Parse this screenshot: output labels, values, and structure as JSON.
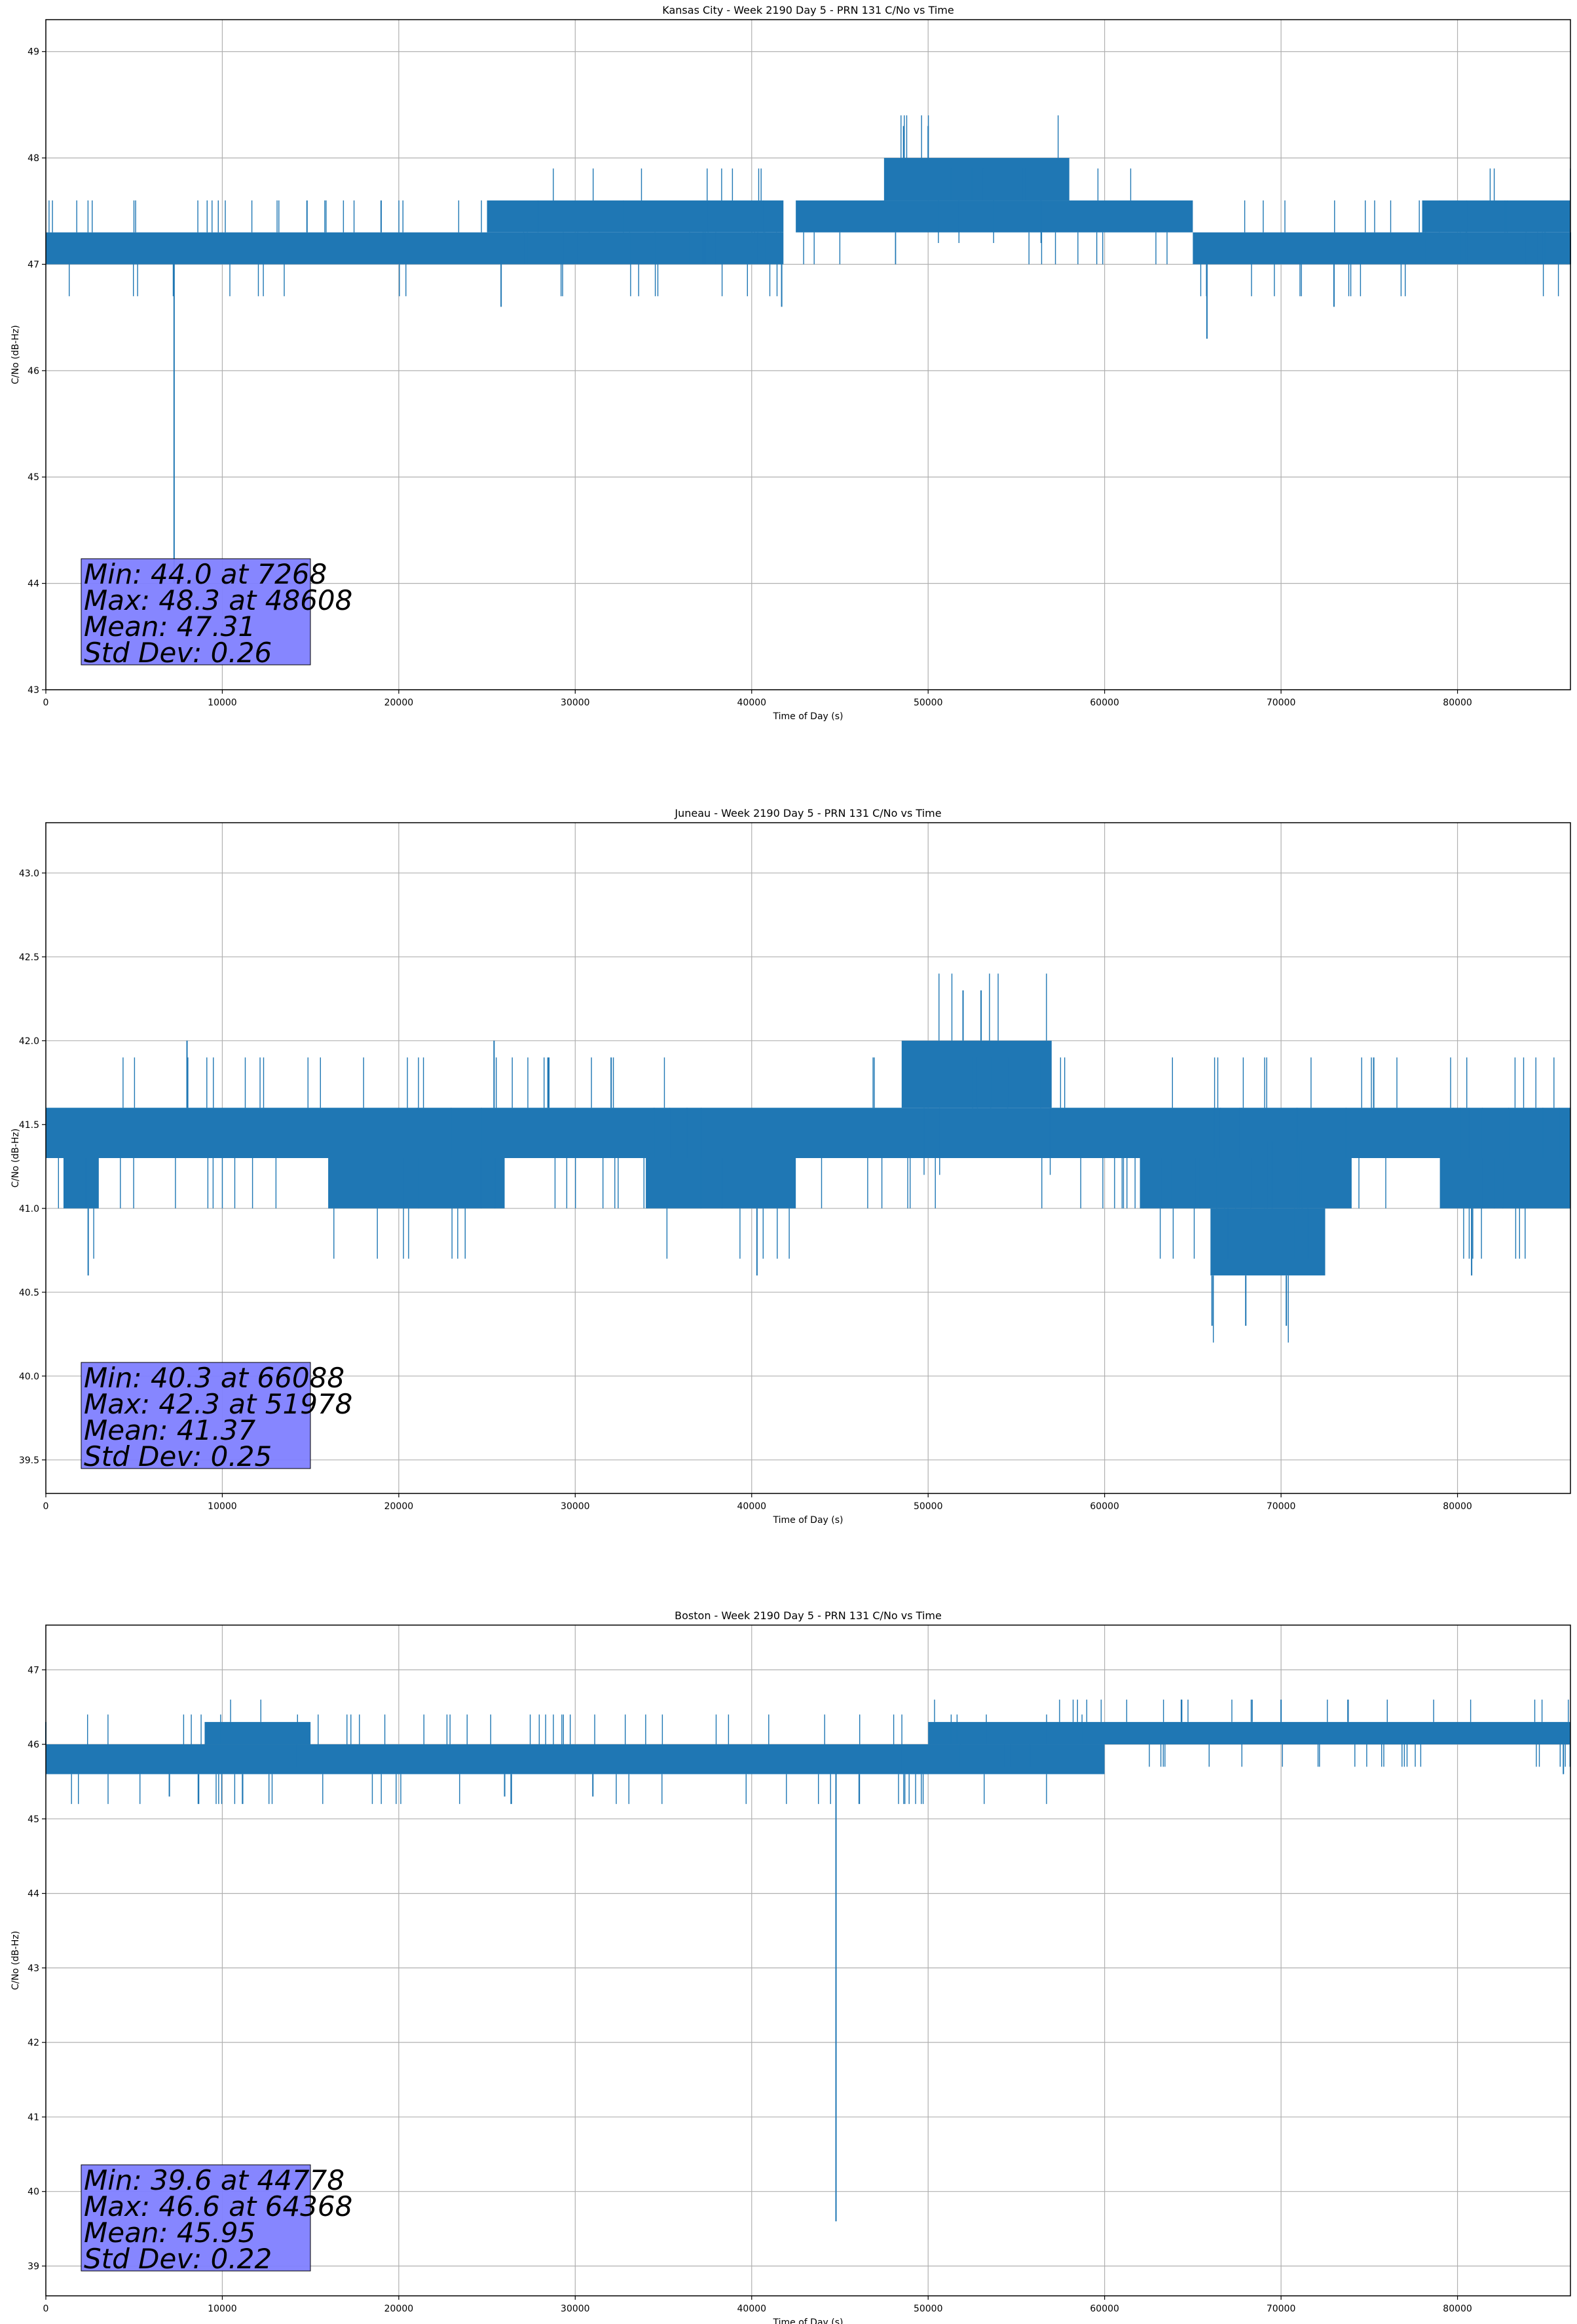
{
  "chart_data": [
    {
      "type": "line",
      "title": "Kansas City - Week 2190 Day 5 - PRN 131 C/No vs Time",
      "xlabel": "Time of Day (s)",
      "ylabel": "C/No (dB-Hz)",
      "xlim": [
        0,
        86400
      ],
      "ylim": [
        43.0,
        49.3
      ],
      "xticks": [
        0,
        10000,
        20000,
        30000,
        40000,
        50000,
        60000,
        70000,
        80000
      ],
      "xtick_labels": [
        "0",
        "10000",
        "20000",
        "30000",
        "40000",
        "50000",
        "60000",
        "70000",
        "80000"
      ],
      "yticks": [
        43,
        44,
        45,
        46,
        47,
        48,
        49
      ],
      "ytick_labels": [
        "43",
        "44",
        "45",
        "46",
        "47",
        "48",
        "49"
      ],
      "grid": true,
      "line_color": "#1f77b4",
      "series": [
        {
          "bands": [
            {
              "x": [
                0,
                41800
              ],
              "y": [
                47.0,
                47.3
              ]
            },
            {
              "x": [
                25000,
                41800
              ],
              "y": [
                47.3,
                47.6
              ]
            },
            {
              "x": [
                42500,
                65000
              ],
              "y": [
                47.3,
                47.6
              ]
            },
            {
              "x": [
                47500,
                58000
              ],
              "y": [
                47.6,
                48.0
              ]
            },
            {
              "x": [
                65000,
                86400
              ],
              "y": [
                47.0,
                47.3
              ]
            },
            {
              "x": [
                78000,
                86400
              ],
              "y": [
                47.3,
                47.6
              ]
            }
          ],
          "points": [
            {
              "x": 0,
              "y": 47.0
            },
            {
              "x": 7268,
              "y": 44.0
            },
            {
              "x": 14800,
              "y": 47.6
            },
            {
              "x": 19000,
              "y": 47.6
            },
            {
              "x": 25800,
              "y": 46.6
            },
            {
              "x": 41700,
              "y": 46.6
            },
            {
              "x": 48608,
              "y": 48.3
            },
            {
              "x": 50000,
              "y": 48.3
            },
            {
              "x": 65800,
              "y": 46.3
            },
            {
              "x": 73000,
              "y": 46.6
            },
            {
              "x": 86400,
              "y": 47.0
            }
          ]
        }
      ],
      "stats": [
        "Min: 44.0 at 7268",
        "Max: 48.3 at 48608",
        "Mean: 47.31",
        "Std Dev: 0.26"
      ],
      "stats_box_color": "#8080ff"
    },
    {
      "type": "line",
      "title": "Juneau - Week 2190 Day 5 - PRN 131 C/No vs Time",
      "xlabel": "Time of Day (s)",
      "ylabel": "C/No (dB-Hz)",
      "xlim": [
        0,
        86400
      ],
      "ylim": [
        39.3,
        43.3
      ],
      "xticks": [
        0,
        10000,
        20000,
        30000,
        40000,
        50000,
        60000,
        70000,
        80000
      ],
      "xtick_labels": [
        "0",
        "10000",
        "20000",
        "30000",
        "40000",
        "50000",
        "60000",
        "70000",
        "80000"
      ],
      "yticks": [
        39.5,
        40.0,
        40.5,
        41.0,
        41.5,
        42.0,
        42.5,
        43.0
      ],
      "ytick_labels": [
        "39.5",
        "40.0",
        "40.5",
        "41.0",
        "41.5",
        "42.0",
        "42.5",
        "43.0"
      ],
      "grid": true,
      "line_color": "#1f77b4",
      "series": [
        {
          "bands": [
            {
              "x": [
                0,
                86400
              ],
              "y": [
                41.3,
                41.6
              ]
            },
            {
              "x": [
                1000,
                3000
              ],
              "y": [
                41.0,
                41.3
              ]
            },
            {
              "x": [
                16000,
                26000
              ],
              "y": [
                41.0,
                41.3
              ]
            },
            {
              "x": [
                34000,
                42500
              ],
              "y": [
                41.0,
                41.3
              ]
            },
            {
              "x": [
                48500,
                57000
              ],
              "y": [
                41.6,
                42.0
              ]
            },
            {
              "x": [
                62000,
                74000
              ],
              "y": [
                41.0,
                41.3
              ]
            },
            {
              "x": [
                66000,
                72500
              ],
              "y": [
                40.6,
                41.0
              ]
            },
            {
              "x": [
                79000,
                86400
              ],
              "y": [
                41.0,
                41.3
              ]
            }
          ],
          "points": [
            {
              "x": 0,
              "y": 41.3
            },
            {
              "x": 2400,
              "y": 40.6
            },
            {
              "x": 8000,
              "y": 42.0
            },
            {
              "x": 25400,
              "y": 42.0
            },
            {
              "x": 40300,
              "y": 40.6
            },
            {
              "x": 51978,
              "y": 42.3
            },
            {
              "x": 53000,
              "y": 42.3
            },
            {
              "x": 66088,
              "y": 40.3
            },
            {
              "x": 68000,
              "y": 40.3
            },
            {
              "x": 70300,
              "y": 40.3
            },
            {
              "x": 80800,
              "y": 40.6
            },
            {
              "x": 86400,
              "y": 41.3
            }
          ]
        }
      ],
      "stats": [
        "Min: 40.3 at 66088",
        "Max: 42.3 at 51978",
        "Mean: 41.37",
        "Std Dev: 0.25"
      ],
      "stats_box_color": "#8080ff"
    },
    {
      "type": "line",
      "title": "Boston - Week 2190 Day 5 - PRN 131 C/No vs Time",
      "xlabel": "Time of Day (s)",
      "ylabel": "C/No (dB-Hz)",
      "xlim": [
        0,
        86400
      ],
      "ylim": [
        38.6,
        47.6
      ],
      "xticks": [
        0,
        10000,
        20000,
        30000,
        40000,
        50000,
        60000,
        70000,
        80000
      ],
      "xtick_labels": [
        "0",
        "10000",
        "20000",
        "30000",
        "40000",
        "50000",
        "60000",
        "70000",
        "80000"
      ],
      "yticks": [
        39,
        40,
        41,
        42,
        43,
        44,
        45,
        46,
        47
      ],
      "ytick_labels": [
        "39",
        "40",
        "41",
        "42",
        "43",
        "44",
        "45",
        "46",
        "47"
      ],
      "grid": true,
      "line_color": "#1f77b4",
      "series": [
        {
          "bands": [
            {
              "x": [
                0,
                50000
              ],
              "y": [
                45.6,
                46.0
              ]
            },
            {
              "x": [
                50000,
                86400
              ],
              "y": [
                46.0,
                46.3
              ]
            },
            {
              "x": [
                9000,
                15000
              ],
              "y": [
                46.0,
                46.3
              ]
            },
            {
              "x": [
                48500,
                60000
              ],
              "y": [
                45.6,
                46.0
              ]
            }
          ],
          "points": [
            {
              "x": 0,
              "y": 46.3
            },
            {
              "x": 7000,
              "y": 45.3
            },
            {
              "x": 26000,
              "y": 45.3
            },
            {
              "x": 31000,
              "y": 45.3
            },
            {
              "x": 44778,
              "y": 39.6
            },
            {
              "x": 64368,
              "y": 46.6
            },
            {
              "x": 70000,
              "y": 46.6
            },
            {
              "x": 86000,
              "y": 45.6
            },
            {
              "x": 86400,
              "y": 46.0
            }
          ]
        }
      ],
      "stats": [
        "Min: 39.6 at 44778",
        "Max: 46.6 at 64368",
        "Mean: 45.95",
        "Std Dev: 0.22"
      ],
      "stats_box_color": "#8080ff"
    }
  ]
}
